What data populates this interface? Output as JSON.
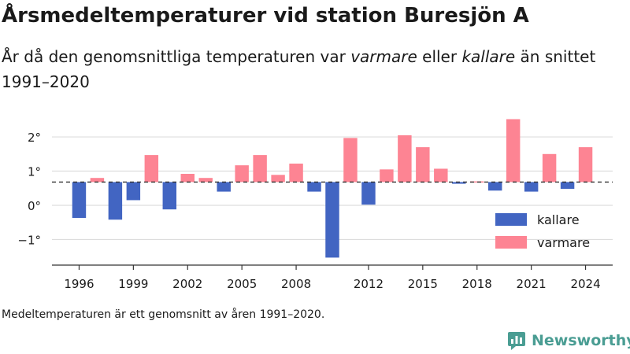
{
  "header": {
    "title": "Årsmedeltemperaturer vid station Buresjön A",
    "subtitle_part1": "År då den genomsnittliga temperaturen var ",
    "subtitle_em1": "varmare",
    "subtitle_part2": " eller ",
    "subtitle_em2": "kallare",
    "subtitle_part3": " än snittet 1991–2020"
  },
  "footnote": "Medeltemperaturen är ett genomsnitt av åren 1991–2020.",
  "brand": {
    "name": "Newsworthy",
    "icon": "newsworthy-logo-icon",
    "color": "#4a9d93"
  },
  "chart_data": {
    "type": "bar",
    "title": "Årsmedeltemperaturer vid station Buresjön A",
    "xlabel": "",
    "ylabel": "",
    "baseline": 0.68,
    "baseline_style": "dashed",
    "ylim": [
      -1.75,
      2.6
    ],
    "yticks": [
      -1,
      0,
      1,
      2
    ],
    "ytick_labels": [
      "−1°",
      "0°",
      "1°",
      "2°"
    ],
    "xlim": [
      1994.5,
      2025.5
    ],
    "xticks": [
      1996,
      1999,
      2002,
      2005,
      2008,
      2012,
      2015,
      2018,
      2021,
      2024
    ],
    "xtick_labels": [
      "1996",
      "1999",
      "2002",
      "2005",
      "2008",
      "2012",
      "2015",
      "2018",
      "2021",
      "2024"
    ],
    "grid": true,
    "legend_position": "bottom-right",
    "colors": {
      "kallare": "#4265c2",
      "varmare": "#fd8493"
    },
    "legend": [
      {
        "key": "kallare",
        "label": "kallare"
      },
      {
        "key": "varmare",
        "label": "varmare"
      }
    ],
    "years": [
      1996,
      1997,
      1998,
      1999,
      2000,
      2001,
      2002,
      2003,
      2004,
      2005,
      2006,
      2007,
      2008,
      2009,
      2010,
      2011,
      2012,
      2013,
      2014,
      2015,
      2016,
      2017,
      2018,
      2019,
      2020,
      2021,
      2022,
      2023,
      2024
    ],
    "values": [
      -0.37,
      0.8,
      -0.42,
      0.15,
      1.47,
      -0.12,
      0.92,
      0.8,
      0.4,
      1.17,
      1.47,
      0.89,
      1.22,
      0.4,
      -1.53,
      1.97,
      0.02,
      1.05,
      2.05,
      1.7,
      1.07,
      0.63,
      0.7,
      0.43,
      2.52,
      0.4,
      1.5,
      0.48,
      1.7
    ]
  }
}
